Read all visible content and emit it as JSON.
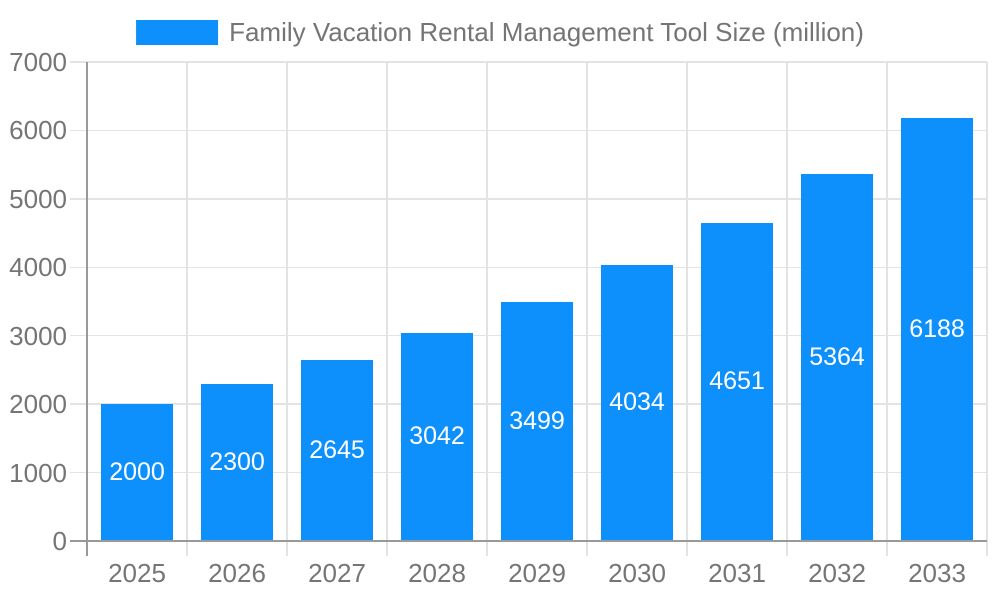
{
  "chart_data": {
    "type": "bar",
    "title": "Family Vacation Rental Management Tool Size (million)",
    "legend_position": "top",
    "categories": [
      "2025",
      "2026",
      "2027",
      "2028",
      "2029",
      "2030",
      "2031",
      "2032",
      "2033"
    ],
    "series": [
      {
        "name": "Family Vacation Rental Management Tool Size (million)",
        "values": [
          2000,
          2300,
          2645,
          3042,
          3499,
          4034,
          4651,
          5364,
          6188
        ]
      }
    ],
    "data_labels_shown_inside_bars": [
      2000,
      2300,
      2645,
      3042,
      3499,
      4034,
      4651,
      5364,
      6188
    ],
    "xlabel": "",
    "ylabel": "",
    "ylim": [
      0,
      7000
    ],
    "y_ticks": [
      0,
      1000,
      2000,
      3000,
      4000,
      5000,
      6000,
      7000
    ],
    "grid": true,
    "colors": {
      "bar": "#0d90fc",
      "bar_value_label": "#ffffff",
      "axis_text": "#757575",
      "grid_line": "#e3e3e3",
      "axis_line": "#999999",
      "background": "#ffffff"
    }
  },
  "legend": {
    "label": "Family Vacation Rental Management Tool Size (million)"
  }
}
